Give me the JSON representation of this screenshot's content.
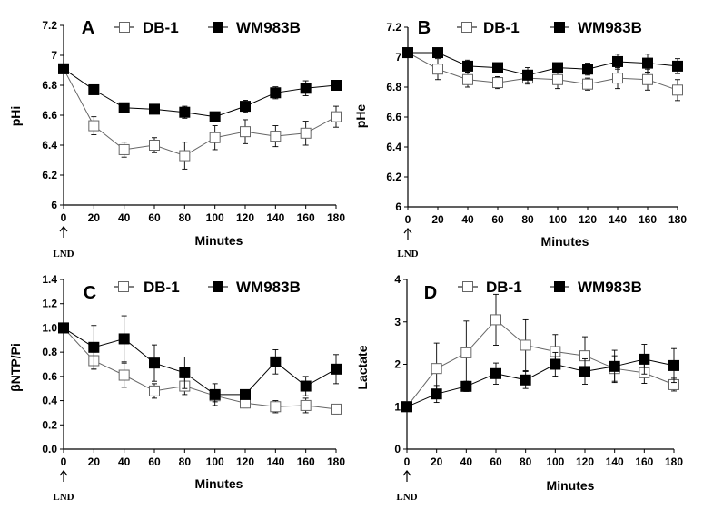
{
  "chart_data": [
    {
      "type": "line",
      "panel": "A",
      "ylabel": "pHi",
      "xlabel": "Minutes",
      "x": [
        0,
        20,
        40,
        60,
        80,
        100,
        120,
        140,
        160,
        180
      ],
      "xticks": [
        "0",
        "20",
        "40",
        "60",
        "80",
        "100",
        "120",
        "140",
        "160",
        "180"
      ],
      "ylim": [
        6,
        7.2
      ],
      "yticks": [
        "6",
        "6.2",
        "6.4",
        "6.6",
        "6.8",
        "7",
        "7.2"
      ],
      "annotation": "LND",
      "legend": [
        "DB-1",
        "WM983B"
      ],
      "series": [
        {
          "name": "DB-1",
          "marker": "open-square",
          "values": [
            6.91,
            6.53,
            6.37,
            6.4,
            6.33,
            6.45,
            6.49,
            6.46,
            6.48,
            6.59
          ],
          "errors": [
            0.03,
            0.06,
            0.05,
            0.05,
            0.09,
            0.08,
            0.08,
            0.07,
            0.08,
            0.07
          ]
        },
        {
          "name": "WM983B",
          "marker": "filled-square",
          "values": [
            6.91,
            6.77,
            6.65,
            6.64,
            6.62,
            6.59,
            6.66,
            6.75,
            6.78,
            6.8
          ],
          "errors": [
            0.03,
            0.03,
            0.03,
            0.03,
            0.04,
            0.03,
            0.04,
            0.04,
            0.05,
            0.02
          ]
        }
      ]
    },
    {
      "type": "line",
      "panel": "B",
      "ylabel": "pHe",
      "xlabel": "Minutes",
      "x": [
        0,
        20,
        40,
        60,
        80,
        100,
        120,
        140,
        160,
        180
      ],
      "xticks": [
        "0",
        "20",
        "40",
        "60",
        "80",
        "100",
        "120",
        "140",
        "160",
        "180"
      ],
      "ylim": [
        6,
        7.2
      ],
      "yticks": [
        "6",
        "6.2",
        "6.4",
        "6.6",
        "6.8",
        "7",
        "7.2"
      ],
      "annotation": "LND",
      "legend": [
        "DB-1",
        "WM983B"
      ],
      "series": [
        {
          "name": "DB-1",
          "marker": "open-square",
          "values": [
            7.03,
            6.92,
            6.85,
            6.83,
            6.86,
            6.85,
            6.82,
            6.86,
            6.85,
            6.78
          ],
          "errors": [
            0.03,
            0.07,
            0.05,
            0.04,
            0.04,
            0.06,
            0.04,
            0.07,
            0.07,
            0.07
          ]
        },
        {
          "name": "WM983B",
          "marker": "filled-square",
          "values": [
            7.03,
            7.03,
            6.94,
            6.93,
            6.88,
            6.93,
            6.92,
            6.97,
            6.96,
            6.94
          ],
          "errors": [
            0.03,
            0.03,
            0.04,
            0.03,
            0.05,
            0.03,
            0.04,
            0.05,
            0.06,
            0.05
          ]
        }
      ]
    },
    {
      "type": "line",
      "panel": "C",
      "ylabel": "βNTP/Pi",
      "xlabel": "Minutes",
      "x": [
        0,
        20,
        40,
        60,
        80,
        100,
        120,
        140,
        160,
        180
      ],
      "xticks": [
        "0",
        "20",
        "40",
        "60",
        "80",
        "100",
        "120",
        "140",
        "160",
        "180"
      ],
      "ylim": [
        0,
        1.4
      ],
      "yticks": [
        "0.0",
        "0.2",
        "0.4",
        "0.6",
        "0.8",
        "1.0",
        "1.2",
        "1.4"
      ],
      "annotation": "LND",
      "legend": [
        "DB-1",
        "WM983B"
      ],
      "series": [
        {
          "name": "DB-1",
          "marker": "open-square",
          "values": [
            1.0,
            0.73,
            0.61,
            0.48,
            0.52,
            0.44,
            0.38,
            0.35,
            0.36,
            0.33
          ],
          "errors": [
            0.02,
            0.07,
            0.1,
            0.06,
            0.07,
            0.05,
            0.04,
            0.05,
            0.06,
            0.04
          ]
        },
        {
          "name": "WM983B",
          "marker": "filled-square",
          "values": [
            1.0,
            0.84,
            0.91,
            0.71,
            0.63,
            0.45,
            0.45,
            0.72,
            0.52,
            0.66
          ],
          "errors": [
            0.02,
            0.18,
            0.19,
            0.15,
            0.13,
            0.09,
            0.03,
            0.1,
            0.08,
            0.12
          ]
        }
      ]
    },
    {
      "type": "line",
      "panel": "D",
      "ylabel": "Lactate",
      "xlabel": "Minutes",
      "x": [
        0,
        20,
        40,
        60,
        80,
        100,
        120,
        140,
        160,
        180
      ],
      "xticks": [
        "0",
        "20",
        "40",
        "60",
        "80",
        "100",
        "120",
        "140",
        "160",
        "180"
      ],
      "ylim": [
        0,
        4
      ],
      "yticks": [
        "0",
        "1",
        "2",
        "3",
        "4"
      ],
      "annotation": "LND",
      "legend": [
        "DB-1",
        "WM983B"
      ],
      "series": [
        {
          "name": "DB-1",
          "marker": "open-square",
          "values": [
            1.0,
            1.9,
            2.27,
            3.05,
            2.45,
            2.3,
            2.2,
            1.9,
            1.8,
            1.52
          ],
          "errors": [
            0.02,
            0.6,
            0.75,
            0.6,
            0.6,
            0.4,
            0.45,
            0.3,
            0.25,
            0.15
          ]
        },
        {
          "name": "WM983B",
          "marker": "filled-square",
          "values": [
            1.0,
            1.3,
            1.48,
            1.78,
            1.63,
            2.0,
            1.83,
            1.95,
            2.12,
            1.97
          ],
          "errors": [
            0.02,
            0.2,
            0.12,
            0.25,
            0.2,
            0.28,
            0.3,
            0.38,
            0.35,
            0.4
          ]
        }
      ]
    }
  ]
}
